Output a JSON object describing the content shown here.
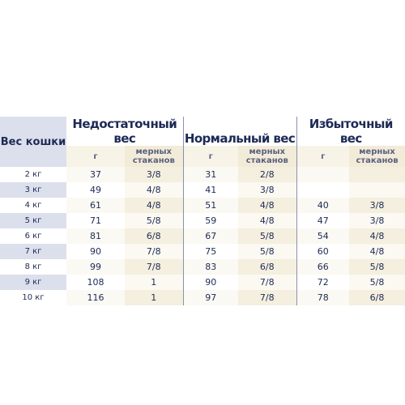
{
  "table": {
    "weight_header": "Вес кошки",
    "groups": [
      "Недостаточный вес",
      "Нормальный вес",
      "Избыточный вес"
    ],
    "sub_headers": {
      "grams": "г",
      "cups": "мерных стаканов"
    },
    "rows": [
      {
        "weight": "2 кг",
        "under_g": "37",
        "under_c": "3/8",
        "norm_g": "31",
        "norm_c": "2/8",
        "over_g": "",
        "over_c": ""
      },
      {
        "weight": "3 кг",
        "under_g": "49",
        "under_c": "4/8",
        "norm_g": "41",
        "norm_c": "3/8",
        "over_g": "",
        "over_c": ""
      },
      {
        "weight": "4 кг",
        "under_g": "61",
        "under_c": "4/8",
        "norm_g": "51",
        "norm_c": "4/8",
        "over_g": "40",
        "over_c": "3/8"
      },
      {
        "weight": "5 кг",
        "under_g": "71",
        "under_c": "5/8",
        "norm_g": "59",
        "norm_c": "4/8",
        "over_g": "47",
        "over_c": "3/8"
      },
      {
        "weight": "6 кг",
        "under_g": "81",
        "under_c": "6/8",
        "norm_g": "67",
        "norm_c": "5/8",
        "over_g": "54",
        "over_c": "4/8"
      },
      {
        "weight": "7 кг",
        "under_g": "90",
        "under_c": "7/8",
        "norm_g": "75",
        "norm_c": "5/8",
        "over_g": "60",
        "over_c": "4/8"
      },
      {
        "weight": "8 кг",
        "under_g": "99",
        "under_c": "7/8",
        "norm_g": "83",
        "norm_c": "6/8",
        "over_g": "66",
        "over_c": "5/8"
      },
      {
        "weight": "9 кг",
        "under_g": "108",
        "under_c": "1",
        "norm_g": "90",
        "norm_c": "7/8",
        "over_g": "72",
        "over_c": "5/8"
      },
      {
        "weight": "10 кг",
        "under_g": "116",
        "under_c": "1",
        "norm_g": "97",
        "norm_c": "7/8",
        "over_g": "78",
        "over_c": "6/8"
      }
    ]
  },
  "colors": {
    "text": "#1d2a55",
    "weight_band": "#dcdfec",
    "cups_band": "#f4efde",
    "divider": "#8a90b0"
  }
}
